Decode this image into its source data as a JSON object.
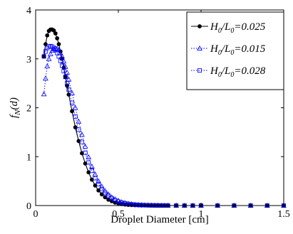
{
  "chart_data": {
    "type": "line",
    "xlabel": "Droplet Diameter [cm]",
    "ylabel": "f_N(d)",
    "xlim": [
      0,
      1.5
    ],
    "ylim": [
      0,
      4
    ],
    "xticks": [
      "0",
      "0.5",
      "1",
      "1.5"
    ],
    "yticks": [
      "0",
      "1",
      "2",
      "3",
      "4"
    ],
    "grid": false,
    "legend_position": "top-right",
    "series": [
      {
        "name": "H0/L0=0.025",
        "label_parts": {
          "a": "H",
          "a_sub": "0",
          "sep": "/",
          "b": "L",
          "b_sub": "0",
          "value": "=0.025"
        },
        "marker": "filled-circle",
        "line": "solid",
        "color": "#000000",
        "x": [
          0.05,
          0.06,
          0.07,
          0.08,
          0.09,
          0.1,
          0.11,
          0.12,
          0.13,
          0.14,
          0.15,
          0.16,
          0.17,
          0.18,
          0.19,
          0.2,
          0.22,
          0.24,
          0.26,
          0.28,
          0.3,
          0.32,
          0.34,
          0.36,
          0.38,
          0.4,
          0.42,
          0.44,
          0.46,
          0.48,
          0.5,
          0.52,
          0.54,
          0.56,
          0.58,
          0.6,
          0.62,
          0.64,
          0.66,
          0.68,
          0.7,
          0.72,
          0.74,
          0.76,
          0.78,
          0.8,
          0.85,
          0.9,
          0.95,
          1.0,
          1.1,
          1.2,
          1.3,
          1.4,
          1.5
        ],
        "y": [
          3.05,
          3.3,
          3.48,
          3.57,
          3.6,
          3.6,
          3.58,
          3.52,
          3.42,
          3.3,
          3.15,
          3.0,
          2.82,
          2.63,
          2.45,
          2.27,
          1.93,
          1.6,
          1.32,
          1.07,
          0.86,
          0.68,
          0.53,
          0.41,
          0.31,
          0.23,
          0.17,
          0.12,
          0.09,
          0.06,
          0.045,
          0.03,
          0.02,
          0.014,
          0.01,
          0.007,
          0.005,
          0.003,
          0.002,
          0.0015,
          0.001,
          0.001,
          0.001,
          0.001,
          0.001,
          0.001,
          0.0,
          0.0,
          0.0,
          0.0,
          0.0,
          0.0,
          0.0,
          0.0,
          0.0
        ]
      },
      {
        "name": "H0/L0=0.015",
        "label_parts": {
          "a": "H",
          "a_sub": "0",
          "sep": "/",
          "b": "L",
          "b_sub": "0",
          "value": "=0.015"
        },
        "marker": "open-triangle",
        "line": "dotted",
        "color": "#0000ff",
        "x": [
          0.05,
          0.06,
          0.07,
          0.08,
          0.09,
          0.1,
          0.11,
          0.12,
          0.13,
          0.14,
          0.15,
          0.16,
          0.17,
          0.18,
          0.19,
          0.2,
          0.22,
          0.24,
          0.26,
          0.28,
          0.3,
          0.32,
          0.34,
          0.36,
          0.38,
          0.4,
          0.42,
          0.44,
          0.46,
          0.48,
          0.5,
          0.52,
          0.54,
          0.56,
          0.58,
          0.6,
          0.62,
          0.64,
          0.66,
          0.68,
          0.7,
          0.72,
          0.74,
          0.76,
          0.78,
          0.8,
          0.85,
          0.9,
          0.95,
          1.0,
          1.1,
          1.2,
          1.3,
          1.4,
          1.5
        ],
        "y": [
          2.28,
          2.6,
          2.85,
          3.0,
          3.1,
          3.17,
          3.2,
          3.22,
          3.21,
          3.18,
          3.12,
          3.05,
          2.95,
          2.84,
          2.72,
          2.58,
          2.3,
          2.0,
          1.72,
          1.45,
          1.21,
          0.99,
          0.8,
          0.64,
          0.5,
          0.39,
          0.3,
          0.23,
          0.17,
          0.13,
          0.1,
          0.07,
          0.055,
          0.04,
          0.03,
          0.022,
          0.016,
          0.012,
          0.009,
          0.007,
          0.005,
          0.004,
          0.003,
          0.002,
          0.002,
          0.0015,
          0.001,
          0.0,
          0.0,
          0.0,
          0.0,
          0.0,
          0.0,
          0.0,
          0.0
        ]
      },
      {
        "name": "H0/L0=0.028",
        "label_parts": {
          "a": "H",
          "a_sub": "0",
          "sep": "/",
          "b": "L",
          "b_sub": "0",
          "value": "=0.028"
        },
        "marker": "open-square",
        "line": "dotted",
        "color": "#0000ff",
        "x": [
          0.05,
          0.06,
          0.07,
          0.08,
          0.09,
          0.1,
          0.11,
          0.12,
          0.13,
          0.14,
          0.15,
          0.16,
          0.17,
          0.18,
          0.19,
          0.2,
          0.22,
          0.24,
          0.26,
          0.28,
          0.3,
          0.32,
          0.34,
          0.36,
          0.38,
          0.4,
          0.42,
          0.44,
          0.46,
          0.48,
          0.5,
          0.52,
          0.54,
          0.56,
          0.58,
          0.6,
          0.62,
          0.64,
          0.66,
          0.68,
          0.7,
          0.72,
          0.74,
          0.76,
          0.78,
          0.8,
          0.85,
          0.9,
          0.95,
          1.0,
          1.1,
          1.2,
          1.3,
          1.4,
          1.5
        ],
        "y": [
          3.05,
          3.15,
          3.22,
          3.25,
          3.26,
          3.25,
          3.22,
          3.18,
          3.12,
          3.05,
          2.96,
          2.86,
          2.75,
          2.63,
          2.5,
          2.37,
          2.1,
          1.82,
          1.55,
          1.3,
          1.08,
          0.88,
          0.71,
          0.56,
          0.44,
          0.34,
          0.26,
          0.2,
          0.15,
          0.11,
          0.08,
          0.06,
          0.045,
          0.033,
          0.024,
          0.018,
          0.013,
          0.01,
          0.007,
          0.005,
          0.004,
          0.003,
          0.002,
          0.0015,
          0.001,
          0.001,
          0.0,
          0.0,
          0.0,
          0.0,
          0.0,
          0.0,
          0.0,
          0.0,
          0.0
        ]
      }
    ]
  }
}
